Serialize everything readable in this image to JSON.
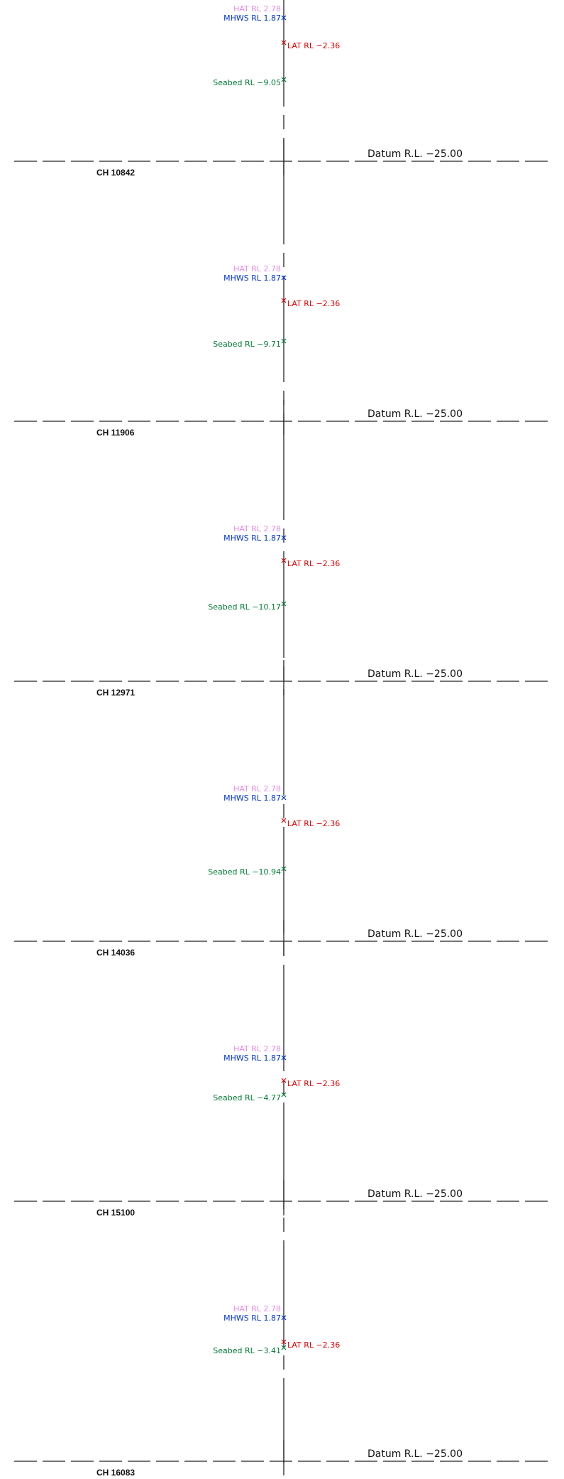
{
  "colors": {
    "line": "#222222",
    "hat": "#e38be3",
    "mhws": "#0033cc",
    "lat": "#e00000",
    "seabed": "#007a33",
    "text": "#111111"
  },
  "sections": [
    {
      "chainage": "CH 10842",
      "hat": "HAT RL 2.78",
      "mhws": "MHWS  RL 1.87",
      "lat": "LAT RL −2.36",
      "seabed": "Seabed RL −9.05",
      "datum": "Datum R.L. −25.00"
    },
    {
      "chainage": "CH 11906",
      "hat": "HAT RL 2.78",
      "mhws": "MHWS  RL 1.87",
      "lat": "LAT RL −2.36",
      "seabed": "Seabed RL −9.71",
      "datum": "Datum R.L. −25.00"
    },
    {
      "chainage": "CH 12971",
      "hat": "HAT RL 2.78",
      "mhws": "MHWS  RL 1.87",
      "lat": "LAT RL −2.36",
      "seabed": "Seabed RL −10.17",
      "datum": "Datum R.L. −25.00"
    },
    {
      "chainage": "CH 14036",
      "hat": "HAT RL 2.78",
      "mhws": "MHWS  RL 1.87",
      "lat": "LAT RL −2.36",
      "seabed": "Seabed RL −10.94",
      "datum": "Datum R.L. −25.00"
    },
    {
      "chainage": "CH 15100",
      "hat": "HAT RL 2.78",
      "mhws": "MHWS  RL 1.87",
      "lat": "LAT RL −2.36",
      "seabed": "Seabed RL −4.77",
      "datum": "Datum R.L. −25.00"
    },
    {
      "chainage": "CH 16083",
      "hat": "HAT RL 2.78",
      "mhws": "MHWS  RL 1.87",
      "lat": "LAT RL −2.36",
      "seabed": "Seabed RL −3.41",
      "datum": "Datum R.L. −25.00"
    }
  ]
}
